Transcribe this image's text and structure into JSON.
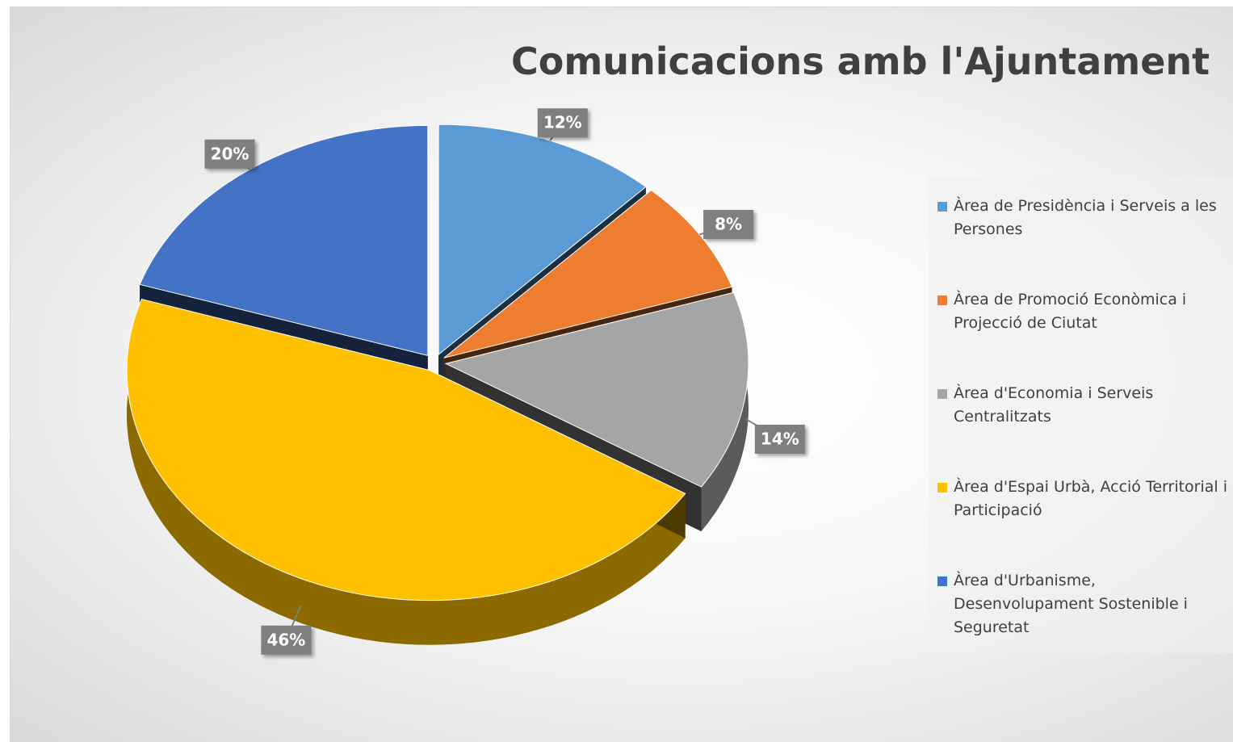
{
  "chart_data": {
    "type": "pie",
    "title": "Comunicacions amb l'Ajuntament",
    "categories": [
      "Àrea de Presidència i Serveis a les Persones",
      "Àrea de Promoció Econòmica i Projecció de Ciutat",
      "Àrea d'Economia i Serveis Centralitzats",
      "Àrea d'Espai Urbà, Acció Territorial i Participació",
      "Àrea d'Urbanisme, Desenvolupament Sostenible i Seguretat"
    ],
    "values": [
      12,
      8,
      14,
      46,
      20
    ],
    "value_labels": [
      "12%",
      "8%",
      "14%",
      "46%",
      "20%"
    ],
    "colors": [
      "#5b9bd5",
      "#ed7d31",
      "#a5a5a5",
      "#ffc000",
      "#4472c4"
    ],
    "legend": "right"
  }
}
